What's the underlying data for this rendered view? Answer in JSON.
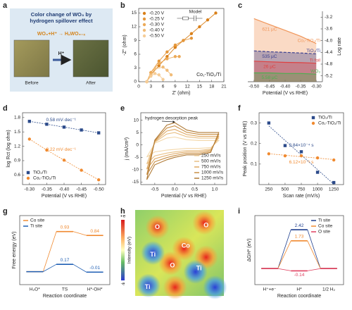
{
  "chart_data": [
    {
      "type": "photo",
      "label": "a",
      "title": [
        "Color change of WO₃ by",
        "hydrogen spillover effect"
      ],
      "reaction": "WO₃+H⁺ → HₓWO₃₋ₓ",
      "arrow_label": "H⁺",
      "images": [
        "Before",
        "After"
      ]
    },
    {
      "type": "scatter",
      "label": "b",
      "xlabel": "Z' (ohm)",
      "ylabel": "-Z'' (ohm)",
      "xlim": [
        0,
        21
      ],
      "xticks": [
        0,
        3,
        6,
        9,
        12,
        15,
        18,
        21
      ],
      "ylim": [
        0,
        16
      ],
      "yticks": [
        0,
        3,
        6,
        9,
        12,
        15
      ],
      "legend": "upper left",
      "annotation": "Co₁-TiO₂/Ti",
      "inset_label": "Model",
      "series": [
        {
          "name": "-0.20 V",
          "color": "#d9801a",
          "marker": "circle",
          "x": [
            2,
            3,
            5,
            7,
            9,
            11,
            13,
            15,
            17,
            19
          ],
          "values": [
            0,
            1.5,
            3.5,
            5.5,
            7.5,
            9,
            10.5,
            12,
            13.5,
            15
          ]
        },
        {
          "name": "-0.25 V",
          "color": "#e4963a",
          "marker": "circle",
          "x": [
            2,
            3,
            5,
            7,
            9,
            11,
            13
          ],
          "values": [
            0,
            2,
            4.5,
            6.5,
            8,
            9,
            9.5
          ]
        },
        {
          "name": "-0.30 V",
          "color": "#ecaa58",
          "marker": "circle",
          "x": [
            2,
            3,
            5,
            7,
            9,
            10
          ],
          "values": [
            0,
            2,
            4,
            5,
            5.5,
            5.5
          ]
        },
        {
          "name": "-0.40 V",
          "color": "#f1bc78",
          "marker": "circle",
          "x": [
            2,
            3,
            4,
            6,
            7,
            8
          ],
          "values": [
            0,
            1.5,
            2.8,
            3.2,
            2.5,
            1.5
          ]
        },
        {
          "name": "-0.50 V",
          "color": "#f5cd98",
          "marker": "circle",
          "x": [
            2,
            3,
            4,
            5,
            6
          ],
          "values": [
            0,
            1.2,
            1.8,
            1.5,
            0.5
          ]
        }
      ]
    },
    {
      "type": "area",
      "label": "c",
      "xlabel": "Potential (V vs RHE)",
      "ylabel": "Log rate",
      "x": [
        -0.5,
        -0.45,
        -0.4,
        -0.35,
        -0.3
      ],
      "xlim": [
        -0.52,
        -0.28
      ],
      "xticks": [
        {
          "value": -0.5,
          "label": "-0.50"
        },
        -0.45,
        {
          "value": -0.4,
          "label": "-0.40"
        },
        -0.35,
        {
          "value": -0.3,
          "label": "-0.30"
        }
      ],
      "ylim": [
        -5.4,
        -3.0
      ],
      "yticks": [
        -5.2,
        -4.8,
        -4.4,
        {
          "value": -4.0,
          "label": "-4.0"
        },
        -3.6,
        -3.2
      ],
      "series": [
        {
          "name": "Co₁-TiO₂/Ti",
          "color": "#f0965a",
          "charge": "621 μC",
          "values": [
            -3.25,
            -3.45,
            -3.65,
            -3.85,
            -4.1
          ]
        },
        {
          "name": "TiO₂/Ti",
          "color": "#3a3f8f",
          "charge": "535 μC",
          "values": [
            -4.35,
            -4.38,
            -4.4,
            -4.42,
            -4.45
          ]
        },
        {
          "name": "Ti foil",
          "color": "#e04040",
          "charge": "26 μC",
          "values": [
            -4.7,
            -4.72,
            -4.74,
            -4.75,
            -4.77
          ]
        },
        {
          "name": "WO₃",
          "color": "#4caf50",
          "charge": "5.58 μC",
          "values": [
            -5.1,
            -5.1,
            -5.12,
            -5.12,
            -5.14
          ]
        }
      ]
    },
    {
      "type": "line",
      "label": "d",
      "xlabel": "Potential (V vs RHE)",
      "ylabel": "log Rct (log ohm)",
      "x": [
        -0.3,
        -0.35,
        -0.4,
        -0.45,
        -0.5
      ],
      "xlim": [
        -0.28,
        -0.52
      ],
      "xticks": [
        {
          "value": -0.3,
          "label": "-0.30"
        },
        -0.35,
        {
          "value": -0.4,
          "label": "-0.40"
        },
        -0.45,
        {
          "value": -0.5,
          "label": "-0.50"
        }
      ],
      "ylim": [
        0.4,
        1.9
      ],
      "yticks": [
        0.6,
        0.9,
        1.2,
        1.5,
        1.8
      ],
      "legend": "lower left",
      "series": [
        {
          "name": "TiO₂/Ti",
          "color": "#2b4a8a",
          "marker": "square",
          "dash": true,
          "slope_label": "0.58 mV·dec⁻¹",
          "values": [
            1.72,
            1.66,
            1.6,
            1.54,
            1.48
          ]
        },
        {
          "name": "Co₁-TiO₂/Ti",
          "color": "#f08a30",
          "marker": "circle",
          "dash": true,
          "slope_label": "0.22 mV·dec⁻¹",
          "values": [
            1.35,
            1.12,
            0.91,
            0.7,
            0.5
          ]
        }
      ]
    },
    {
      "type": "line",
      "label": "e",
      "xlabel": "Potential (V vs RHE)",
      "ylabel": "j (mA/cm²)",
      "x": [
        -0.7,
        -0.5,
        -0.2,
        0.0,
        0.3,
        0.6,
        0.9,
        1.1,
        0.9,
        0.6,
        0.3,
        0.0,
        -0.2,
        -0.5,
        -0.7
      ],
      "xlim": [
        -0.85,
        1.3
      ],
      "xticks": [
        -0.5,
        {
          "value": 0,
          "label": "0.0"
        },
        0.5,
        {
          "value": 1,
          "label": "1.0"
        }
      ],
      "ylim": [
        -16,
        13
      ],
      "yticks": [
        -15,
        -10,
        -5,
        0,
        5,
        10
      ],
      "legend": "lower right",
      "annotation": "hydrogen desorption peak",
      "series": [
        {
          "name": "250 mV/s",
          "color": "#f3d7a8",
          "values": [
            -4.9,
            0.7,
            2.8,
            3.2,
            2.1,
            1.8,
            1.8,
            1.8,
            -1.1,
            -1.4,
            -1.4,
            -1.8,
            -2.1,
            -2.8,
            -4.9
          ]
        },
        {
          "name": "500 mV/s",
          "color": "#e9c085",
          "values": [
            -7.7,
            1.1,
            4.4,
            5,
            3.3,
            2.8,
            2.8,
            2.8,
            -1.7,
            -2.2,
            -2.2,
            -2.8,
            -3.3,
            -4.4,
            -7.7
          ]
        },
        {
          "name": "750 mV/s",
          "color": "#dfa862",
          "values": [
            -9.8,
            1.4,
            5.6,
            6.3,
            4.2,
            3.5,
            3.5,
            3.5,
            -2.1,
            -2.8,
            -2.8,
            -3.5,
            -4.2,
            -5.6,
            -9.8
          ]
        },
        {
          "name": "1000 mV/s",
          "color": "#c98f45",
          "values": [
            -12,
            1.7,
            6.8,
            7.7,
            5.1,
            4.3,
            4.3,
            4.3,
            -2.6,
            -3.4,
            -3.4,
            -4.3,
            -5.1,
            -6.8,
            -12
          ]
        },
        {
          "name": "1250 mV/s",
          "color": "#b07a35",
          "values": [
            -14,
            2,
            8,
            9,
            6,
            5,
            5,
            5,
            -3,
            -4,
            -4,
            -5,
            -6,
            -8,
            -14
          ]
        }
      ]
    },
    {
      "type": "scatter",
      "label": "f",
      "fit": true,
      "xlabel": "Scan rate (mV/s)",
      "ylabel": "Peak position (V vs RHE)",
      "x": [
        250,
        500,
        750,
        1000,
        1250
      ],
      "xlim": [
        100,
        1400
      ],
      "xticks": [
        250,
        500,
        750,
        1000,
        1250
      ],
      "ylim": [
        0,
        0.35
      ],
      "yticks": [
        0.1,
        0.2,
        0.3
      ],
      "legend": "upper right",
      "series": [
        {
          "name": "TiO₂/Ti",
          "color": "#2b4a8a",
          "marker": "square",
          "fit_label": "2.84×10⁻⁴ s",
          "values": [
            0.3,
            0.19,
            0.16,
            0.06,
            0.01
          ]
        },
        {
          "name": "Co₁-TiO₂/Ti",
          "color": "#f08a30",
          "marker": "circle",
          "fit_label": "6.12×10⁻⁵ s",
          "values": [
            0.15,
            0.14,
            0.14,
            0.13,
            0.12
          ]
        }
      ]
    },
    {
      "type": "energy",
      "label": "g",
      "xlabel": "Reaction coordinate",
      "ylabel": "Free energy (eV)",
      "categories": [
        "H₂O*",
        "TS",
        "H*-OH*"
      ],
      "ylim": [
        -0.3,
        1.3
      ],
      "legend": "upper left",
      "series": [
        {
          "name": "Co site",
          "color": "#f08a30",
          "values": [
            0,
            0.93,
            0.84
          ],
          "value_labels": [
            null,
            "0.93",
            "0.84"
          ]
        },
        {
          "name": "Ti site",
          "color": "#1f5fb4",
          "values": [
            0,
            0.17,
            -0.01
          ],
          "value_labels": [
            null,
            "0.17",
            "-0.01"
          ]
        }
      ]
    },
    {
      "type": "map",
      "label": "h",
      "colorbar_top": "+e",
      "colorbar_bottom": "-e",
      "colorbar_label": "Intensity (eV)",
      "atoms": [
        "O",
        "O",
        "Co",
        "Ti",
        "Ti",
        "O",
        "Ti"
      ]
    },
    {
      "type": "energy",
      "label": "i",
      "xlabel": "Reaction coordinate",
      "ylabel": "ΔGH* (eV)",
      "categories": [
        "H⁺+e⁻",
        "H*",
        "1/2 H₂"
      ],
      "ylim": [
        -1,
        3.3
      ],
      "legend": "upper right",
      "series": [
        {
          "name": "Ti site",
          "color": "#1f3f8f",
          "values": [
            0,
            2.42,
            0
          ],
          "value_labels": [
            null,
            "2.42",
            null
          ]
        },
        {
          "name": "Co site",
          "color": "#f08a30",
          "values": [
            0,
            1.73,
            0
          ],
          "value_labels": [
            null,
            "1.73",
            null
          ]
        },
        {
          "name": "O site",
          "color": "#e04060",
          "values": [
            0,
            -0.14,
            0
          ],
          "value_labels": [
            null,
            "-0.14",
            null
          ]
        }
      ]
    }
  ]
}
